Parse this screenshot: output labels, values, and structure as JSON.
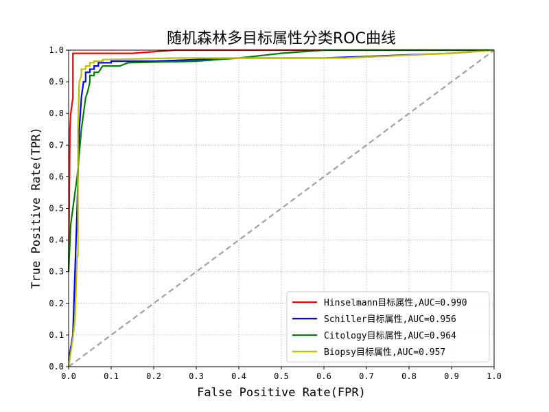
{
  "chart_data": {
    "type": "line",
    "title": "随机森林多目标属性分类ROC曲线",
    "xlabel": "False Positive Rate(FPR)",
    "ylabel": "True Positive Rate(TPR)",
    "xlim": [
      0,
      1
    ],
    "ylim": [
      0,
      1
    ],
    "xticks": [
      "0.0",
      "0.1",
      "0.2",
      "0.3",
      "0.4",
      "0.5",
      "0.6",
      "0.7",
      "0.8",
      "0.9",
      "1.0"
    ],
    "yticks": [
      "0.0",
      "0.1",
      "0.2",
      "0.3",
      "0.4",
      "0.5",
      "0.6",
      "0.7",
      "0.8",
      "0.9",
      "1.0"
    ],
    "grid": true,
    "legend_position": "lower-right",
    "series": [
      {
        "name": "Hinselmann目标属性,AUC=0.990",
        "color": "#ff0000",
        "points": [
          [
            0,
            0.3
          ],
          [
            0.003,
            0.75
          ],
          [
            0.005,
            0.8
          ],
          [
            0.01,
            0.85
          ],
          [
            0.01,
            0.99
          ],
          [
            0.15,
            0.99
          ],
          [
            0.25,
            1.0
          ],
          [
            1.0,
            1.0
          ]
        ]
      },
      {
        "name": "Schiller目标属性,AUC=0.956",
        "color": "#0000ff",
        "points": [
          [
            0,
            0.02
          ],
          [
            0.01,
            0.1
          ],
          [
            0.02,
            0.5
          ],
          [
            0.025,
            0.75
          ],
          [
            0.03,
            0.85
          ],
          [
            0.035,
            0.9
          ],
          [
            0.04,
            0.9
          ],
          [
            0.04,
            0.93
          ],
          [
            0.05,
            0.93
          ],
          [
            0.05,
            0.94
          ],
          [
            0.06,
            0.94
          ],
          [
            0.06,
            0.95
          ],
          [
            0.07,
            0.95
          ],
          [
            0.07,
            0.96
          ],
          [
            0.1,
            0.96
          ],
          [
            0.1,
            0.965
          ],
          [
            0.2,
            0.965
          ],
          [
            0.4,
            0.975
          ],
          [
            0.6,
            0.975
          ],
          [
            0.8,
            0.985
          ],
          [
            0.9,
            0.99
          ],
          [
            1.0,
            1.0
          ]
        ]
      },
      {
        "name": "Citology目标属性,AUC=0.964",
        "color": "#008000",
        "points": [
          [
            0,
            0.3
          ],
          [
            0.005,
            0.45
          ],
          [
            0.02,
            0.6
          ],
          [
            0.03,
            0.75
          ],
          [
            0.04,
            0.85
          ],
          [
            0.045,
            0.87
          ],
          [
            0.05,
            0.9
          ],
          [
            0.05,
            0.92
          ],
          [
            0.06,
            0.92
          ],
          [
            0.06,
            0.93
          ],
          [
            0.07,
            0.93
          ],
          [
            0.08,
            0.95
          ],
          [
            0.12,
            0.95
          ],
          [
            0.14,
            0.96
          ],
          [
            0.3,
            0.965
          ],
          [
            0.4,
            0.975
          ],
          [
            0.5,
            0.99
          ],
          [
            0.6,
            1.0
          ],
          [
            1.0,
            1.0
          ]
        ]
      },
      {
        "name": "Biopsy目标属性,AUC=0.957",
        "color": "#bfbf00",
        "points": [
          [
            0,
            0.0
          ],
          [
            0.01,
            0.09
          ],
          [
            0.015,
            0.15
          ],
          [
            0.02,
            0.35
          ],
          [
            0.022,
            0.35
          ],
          [
            0.022,
            0.75
          ],
          [
            0.025,
            0.9
          ],
          [
            0.03,
            0.92
          ],
          [
            0.03,
            0.94
          ],
          [
            0.04,
            0.94
          ],
          [
            0.04,
            0.95
          ],
          [
            0.05,
            0.95
          ],
          [
            0.05,
            0.96
          ],
          [
            0.06,
            0.96
          ],
          [
            0.06,
            0.965
          ],
          [
            0.08,
            0.965
          ],
          [
            0.08,
            0.97
          ],
          [
            0.25,
            0.975
          ],
          [
            0.65,
            0.975
          ],
          [
            0.9,
            0.99
          ],
          [
            1.0,
            1.0
          ]
        ]
      }
    ],
    "reference_line": {
      "points": [
        [
          0,
          0
        ],
        [
          1,
          1
        ]
      ],
      "color": "#a0a0a0",
      "style": "dashed"
    }
  }
}
